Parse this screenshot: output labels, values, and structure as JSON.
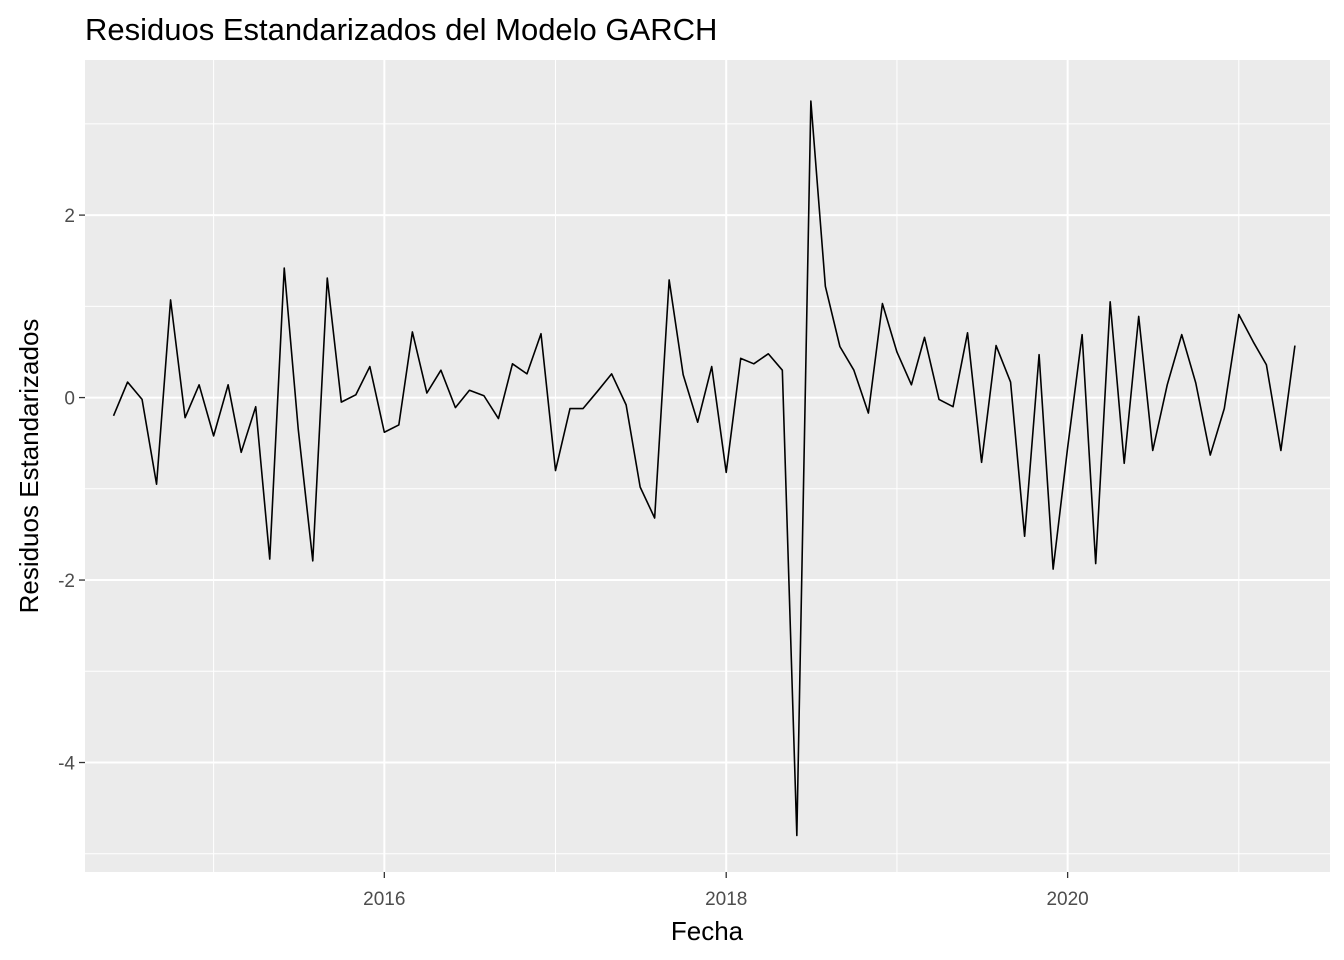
{
  "chart_data": {
    "type": "line",
    "title": "Residuos Estandarizados del Modelo GARCH",
    "xlabel": "Fecha",
    "ylabel": "Residuos Estandarizados",
    "x_is_date": true,
    "xlim": [
      "2014-04-01",
      "2021-07-15"
    ],
    "ylim": [
      -5.2,
      3.7
    ],
    "x_ticks": [
      "2016",
      "2018",
      "2020"
    ],
    "x_tick_dates": [
      "2016-01-01",
      "2018-01-01",
      "2020-01-01"
    ],
    "y_ticks": [
      -4,
      -2,
      0,
      2
    ],
    "y_tick_labels": [
      "-4",
      "-2",
      "0",
      "2"
    ],
    "grid": true,
    "colors": {
      "panel": "#ebebeb",
      "grid": "#ffffff",
      "line": "#000000"
    },
    "series": [
      {
        "x": [
          "2014-06-01",
          "2014-07-01",
          "2014-08-01",
          "2014-09-01",
          "2014-10-01",
          "2014-11-01",
          "2014-12-01",
          "2015-01-01",
          "2015-02-01",
          "2015-03-01",
          "2015-04-01",
          "2015-05-01",
          "2015-06-01",
          "2015-07-01",
          "2015-08-01",
          "2015-09-01",
          "2015-10-01",
          "2015-11-01",
          "2015-12-01",
          "2016-01-01",
          "2016-02-01",
          "2016-03-01",
          "2016-04-01",
          "2016-05-01",
          "2016-06-01",
          "2016-07-01",
          "2016-08-01",
          "2016-09-01",
          "2016-10-01",
          "2016-11-01",
          "2016-12-01",
          "2017-01-01",
          "2017-02-01",
          "2017-03-01",
          "2017-04-01",
          "2017-05-01",
          "2017-06-01",
          "2017-07-01",
          "2017-08-01",
          "2017-09-01",
          "2017-10-01",
          "2017-11-01",
          "2017-12-01",
          "2018-01-01",
          "2018-02-01",
          "2018-03-01",
          "2018-04-01",
          "2018-05-01",
          "2018-06-01",
          "2018-07-01",
          "2018-08-01",
          "2018-09-01",
          "2018-10-01",
          "2018-11-01",
          "2018-12-01",
          "2019-01-01",
          "2019-02-01",
          "2019-03-01",
          "2019-04-01",
          "2019-05-01",
          "2019-06-01",
          "2019-07-01",
          "2019-08-01",
          "2019-09-01",
          "2019-10-01",
          "2019-11-01",
          "2019-12-01",
          "2020-01-01",
          "2020-02-01",
          "2020-03-01",
          "2020-04-01",
          "2020-05-01",
          "2020-06-01",
          "2020-07-01",
          "2020-08-01",
          "2020-09-01",
          "2020-10-01",
          "2020-11-01",
          "2020-12-01",
          "2021-01-01",
          "2021-02-01",
          "2021-03-01",
          "2021-04-01",
          "2021-05-01"
        ],
        "values": [
          -0.2,
          0.17,
          -0.02,
          -0.95,
          1.07,
          -0.22,
          0.14,
          -0.42,
          0.14,
          -0.6,
          -0.1,
          -1.77,
          1.42,
          -0.35,
          -1.79,
          1.31,
          -0.05,
          0.03,
          0.34,
          -0.38,
          -0.3,
          0.72,
          0.05,
          0.3,
          -0.11,
          0.08,
          0.02,
          -0.23,
          0.37,
          0.26,
          0.7,
          -0.8,
          -0.12,
          -0.12,
          0.07,
          0.26,
          -0.08,
          -0.98,
          -1.32,
          1.29,
          0.25,
          -0.27,
          0.34,
          -0.82,
          0.43,
          0.37,
          0.48,
          0.3,
          -4.8,
          3.25,
          1.22,
          0.56,
          0.3,
          -0.17,
          1.03,
          0.5,
          0.14,
          0.66,
          -0.02,
          -0.1,
          0.71,
          -0.71,
          0.57,
          0.17,
          -1.52,
          0.47,
          -1.88,
          -0.55,
          0.69,
          -1.82,
          1.05,
          -0.72,
          0.89,
          -0.58,
          0.14,
          0.69,
          0.16,
          -0.63,
          -0.12,
          0.91,
          0.61,
          0.36,
          -0.58,
          0.57
        ]
      }
    ]
  }
}
